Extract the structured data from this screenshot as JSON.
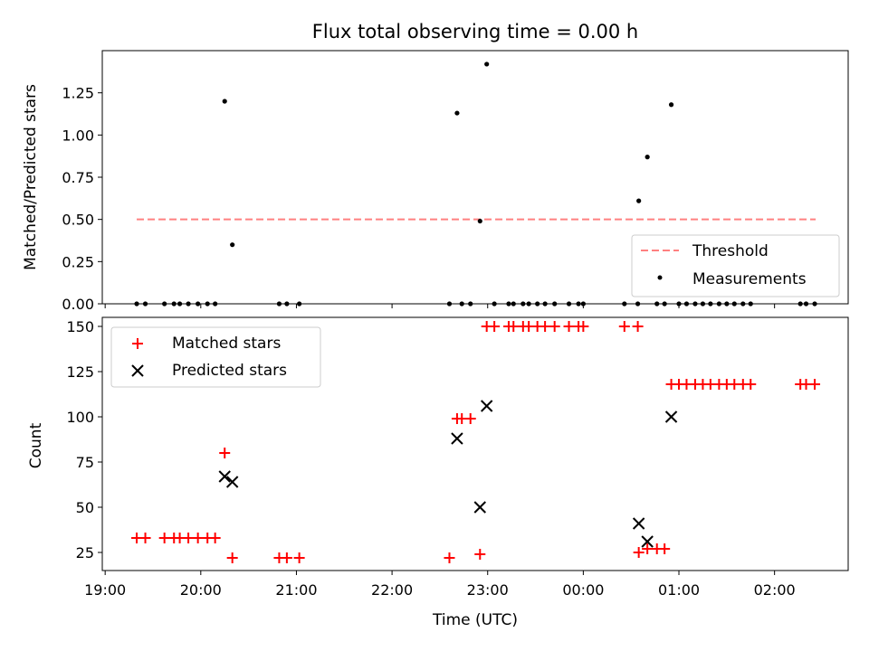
{
  "chart_data": {
    "title": "Flux total observing time = 0.00 h",
    "x_axis": {
      "label": "Time (UTC)",
      "tick_labels": [
        "19:00",
        "20:00",
        "21:00",
        "22:00",
        "23:00",
        "00:00",
        "01:00",
        "02:00"
      ],
      "range_hours": [
        18.97,
        26.77
      ]
    },
    "panels": [
      {
        "type": "scatter",
        "ylabel": "Matched/Predicted stars",
        "ylim": [
          0,
          1.5
        ],
        "yticks": [
          "0.00",
          "0.25",
          "0.50",
          "0.75",
          "1.00",
          "1.25"
        ],
        "legend_position": "lower-right",
        "series": [
          {
            "name": "Threshold",
            "kind": "dashed-line",
            "color": "#ff8080",
            "x_range": [
              19.33,
              26.43
            ],
            "y": 0.5
          },
          {
            "name": "Measurements",
            "kind": "dot",
            "color": "#000000",
            "points": [
              [
                19.33,
                0
              ],
              [
                19.42,
                0
              ],
              [
                19.62,
                0
              ],
              [
                19.72,
                0
              ],
              [
                19.78,
                0
              ],
              [
                19.87,
                0
              ],
              [
                19.97,
                0
              ],
              [
                20.07,
                0
              ],
              [
                20.15,
                0
              ],
              [
                20.25,
                1.2
              ],
              [
                20.33,
                0.35
              ],
              [
                20.82,
                0
              ],
              [
                20.9,
                0
              ],
              [
                21.03,
                0
              ],
              [
                22.6,
                0
              ],
              [
                22.68,
                1.13
              ],
              [
                22.73,
                0
              ],
              [
                22.82,
                0
              ],
              [
                22.92,
                0.49
              ],
              [
                22.99,
                1.42
              ],
              [
                23.07,
                0
              ],
              [
                23.22,
                0
              ],
              [
                23.27,
                0
              ],
              [
                23.37,
                0
              ],
              [
                23.43,
                0
              ],
              [
                23.52,
                0
              ],
              [
                23.6,
                0
              ],
              [
                23.7,
                0
              ],
              [
                23.85,
                0
              ],
              [
                23.95,
                0
              ],
              [
                24.0,
                0
              ],
              [
                24.43,
                0
              ],
              [
                24.57,
                0
              ],
              [
                24.58,
                0.61
              ],
              [
                24.67,
                0.87
              ],
              [
                24.77,
                0
              ],
              [
                24.85,
                0
              ],
              [
                24.92,
                1.18
              ],
              [
                25.0,
                0
              ],
              [
                25.08,
                0
              ],
              [
                25.17,
                0
              ],
              [
                25.25,
                0
              ],
              [
                25.33,
                0
              ],
              [
                25.42,
                0
              ],
              [
                25.5,
                0
              ],
              [
                25.58,
                0
              ],
              [
                25.67,
                0
              ],
              [
                25.75,
                0
              ],
              [
                26.27,
                0
              ],
              [
                26.33,
                0
              ],
              [
                26.42,
                0
              ]
            ]
          }
        ]
      },
      {
        "type": "scatter",
        "ylabel": "Count",
        "ylim": [
          15,
          155
        ],
        "yticks": [
          "25",
          "50",
          "75",
          "100",
          "125",
          "150"
        ],
        "legend_position": "upper-left",
        "series": [
          {
            "name": "Matched stars",
            "kind": "plus",
            "color": "#ff0000",
            "points": [
              [
                19.33,
                33
              ],
              [
                19.42,
                33
              ],
              [
                19.62,
                33
              ],
              [
                19.72,
                33
              ],
              [
                19.78,
                33
              ],
              [
                19.87,
                33
              ],
              [
                19.97,
                33
              ],
              [
                20.07,
                33
              ],
              [
                20.15,
                33
              ],
              [
                20.25,
                80
              ],
              [
                20.33,
                22
              ],
              [
                20.82,
                22
              ],
              [
                20.9,
                22
              ],
              [
                21.03,
                22
              ],
              [
                22.6,
                22
              ],
              [
                22.68,
                99
              ],
              [
                22.73,
                99
              ],
              [
                22.82,
                99
              ],
              [
                22.92,
                24
              ],
              [
                22.99,
                150
              ],
              [
                23.07,
                150
              ],
              [
                23.22,
                150
              ],
              [
                23.27,
                150
              ],
              [
                23.37,
                150
              ],
              [
                23.43,
                150
              ],
              [
                23.52,
                150
              ],
              [
                23.6,
                150
              ],
              [
                23.7,
                150
              ],
              [
                23.85,
                150
              ],
              [
                23.95,
                150
              ],
              [
                24.0,
                150
              ],
              [
                24.43,
                150
              ],
              [
                24.57,
                150
              ],
              [
                24.58,
                25
              ],
              [
                24.67,
                27
              ],
              [
                24.77,
                27
              ],
              [
                24.85,
                27
              ],
              [
                24.92,
                118
              ],
              [
                25.0,
                118
              ],
              [
                25.08,
                118
              ],
              [
                25.17,
                118
              ],
              [
                25.25,
                118
              ],
              [
                25.33,
                118
              ],
              [
                25.42,
                118
              ],
              [
                25.5,
                118
              ],
              [
                25.58,
                118
              ],
              [
                25.67,
                118
              ],
              [
                25.75,
                118
              ],
              [
                26.27,
                118
              ],
              [
                26.33,
                118
              ],
              [
                26.42,
                118
              ]
            ]
          },
          {
            "name": "Predicted stars",
            "kind": "x",
            "color": "#000000",
            "points": [
              [
                20.25,
                67
              ],
              [
                20.33,
                64
              ],
              [
                22.68,
                88
              ],
              [
                22.92,
                50
              ],
              [
                22.99,
                106
              ],
              [
                24.58,
                41
              ],
              [
                24.67,
                31
              ],
              [
                24.92,
                100
              ]
            ]
          }
        ]
      }
    ]
  }
}
